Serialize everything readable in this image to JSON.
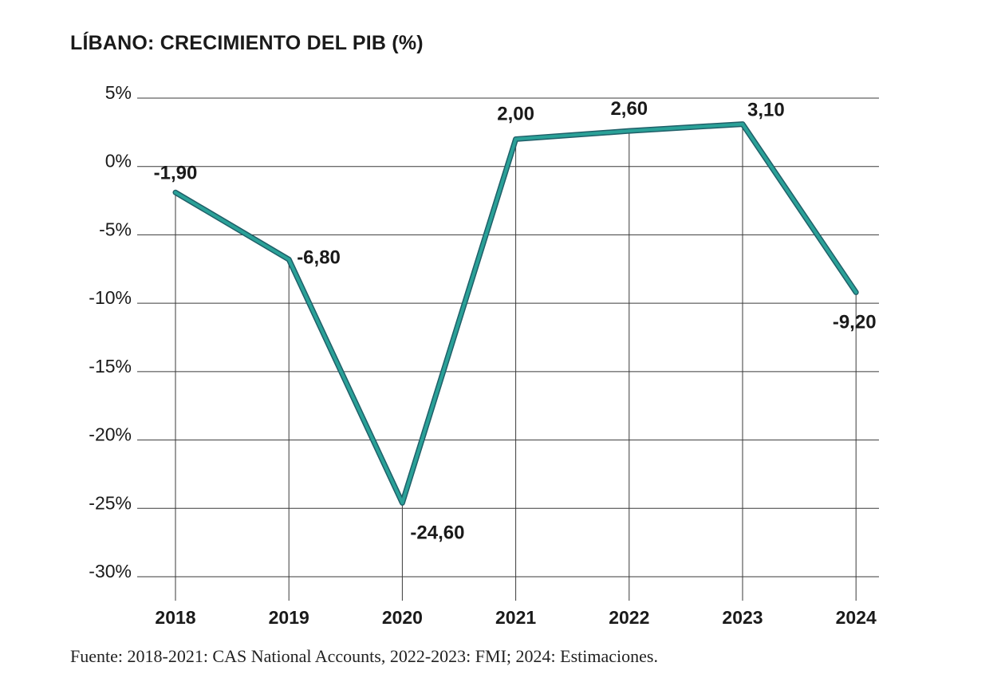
{
  "chart_data": {
    "type": "line",
    "title": "LÍBANO: CRECIMIENTO DEL PIB (%)",
    "categories": [
      "2018",
      "2019",
      "2020",
      "2021",
      "2022",
      "2023",
      "2024"
    ],
    "values": [
      -1.9,
      -6.8,
      -24.6,
      2.0,
      2.6,
      3.1,
      -9.2
    ],
    "data_labels": [
      "-1,90",
      "-6,80",
      "-24,60",
      "2,00",
      "2,60",
      "3,10",
      "-9,20"
    ],
    "ylim": [
      -30,
      5
    ],
    "yticks": [
      5,
      0,
      -5,
      -10,
      -15,
      -20,
      -25,
      -30
    ],
    "ytick_labels": [
      "5%",
      "0%",
      "-5%",
      "-10%",
      "-15%",
      "-20%",
      "-25%",
      "-30%"
    ],
    "xlabel": "",
    "ylabel": "",
    "grid": true,
    "line_color": "#2aa198",
    "line_edge_color": "#1f5f68"
  },
  "source": "Fuente: 2018-2021: CAS National Accounts, 2022-2023: FMI; 2024: Estimaciones."
}
